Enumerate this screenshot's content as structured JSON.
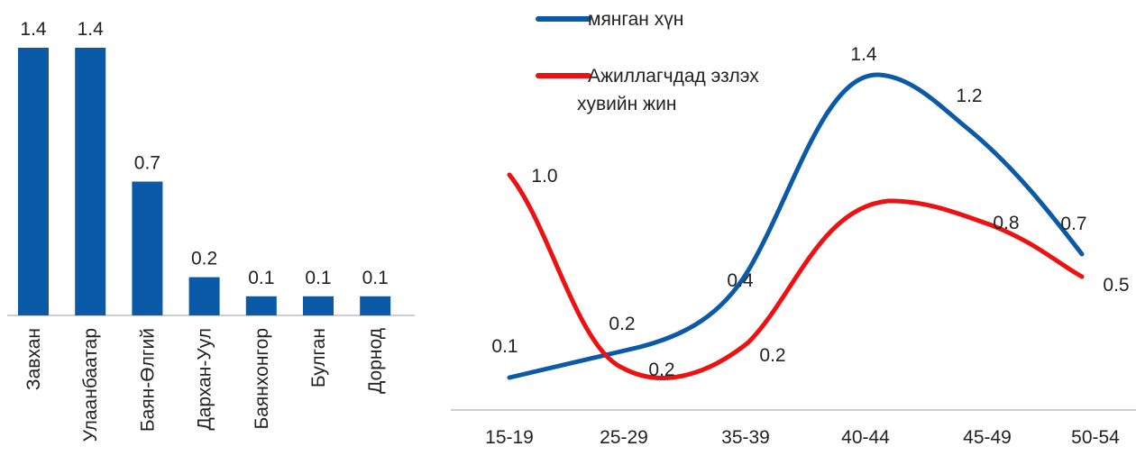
{
  "chart_data": [
    {
      "type": "bar",
      "title": "",
      "xlabel": "",
      "ylabel": "",
      "categories": [
        "Завхан",
        "Улаанбаатар",
        "Баян-Өлгий",
        "Дархан-Уул",
        "Баянхонгор",
        "Булган",
        "Дорнод"
      ],
      "values": [
        1.4,
        1.4,
        0.7,
        0.2,
        0.1,
        0.1,
        0.1
      ],
      "data_labels": [
        "1.4",
        "1.4",
        "0.7",
        "0.2",
        "0.1",
        "0.1",
        "0.1"
      ],
      "ylim": [
        0,
        1.4
      ],
      "color": "#0a5aa8",
      "grid": false
    },
    {
      "type": "line",
      "title": "",
      "xlabel": "",
      "ylabel": "",
      "categories": [
        "15-19",
        "25-29",
        "35-39",
        "40-44",
        "45-49",
        "50-54"
      ],
      "legend_position": "top",
      "grid": false,
      "series": [
        {
          "name": "мянган хүн",
          "color": "#0a5aa8",
          "values": [
            0.1,
            0.2,
            0.4,
            1.4,
            1.2,
            0.7
          ],
          "data_labels": [
            "0.1",
            "0.2",
            "0.4",
            "1.4",
            "1.2",
            "0.7"
          ]
        },
        {
          "name": "Ажиллагчдад эзлэх хувийн жин",
          "name_lines": [
            "Ажиллагчдад эзлэх",
            "хувийн жин"
          ],
          "color": "#ee1111",
          "values": [
            1.0,
            0.2,
            0.2,
            0.8,
            0.8,
            0.5
          ],
          "data_labels": [
            "1.0",
            "0.2",
            "0.2",
            "",
            "0.8",
            "0.5"
          ]
        }
      ]
    }
  ]
}
